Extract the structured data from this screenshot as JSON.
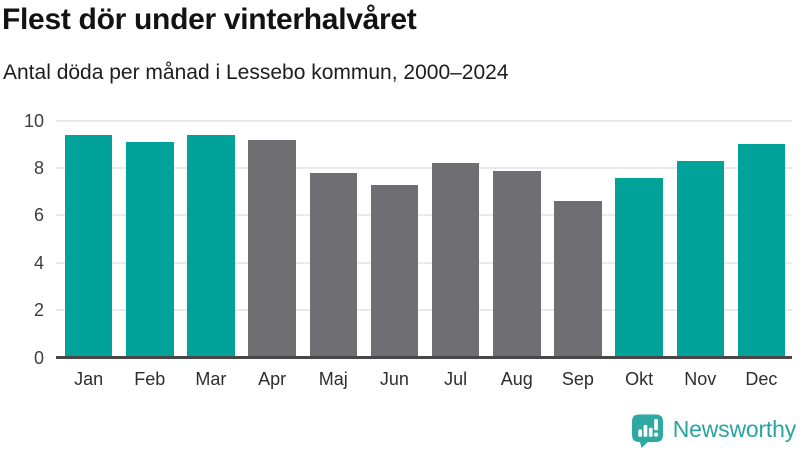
{
  "header": {
    "title": "Flest dör under vinterhalvåret",
    "subtitle": "Antal döda per månad i Lessebo kommun, 2000–2024"
  },
  "chart_data": {
    "type": "bar",
    "title": "Flest dör under vinterhalvåret",
    "subtitle": "Antal döda per månad i Lessebo kommun, 2000–2024",
    "categories": [
      "Jan",
      "Feb",
      "Mar",
      "Apr",
      "Maj",
      "Jun",
      "Jul",
      "Aug",
      "Sep",
      "Okt",
      "Nov",
      "Dec"
    ],
    "values": [
      9.4,
      9.1,
      9.4,
      9.2,
      7.8,
      7.3,
      8.2,
      7.9,
      6.6,
      7.6,
      8.3,
      9.0
    ],
    "highlighted": [
      true,
      true,
      true,
      false,
      false,
      false,
      false,
      false,
      false,
      true,
      true,
      true
    ],
    "xlabel": "",
    "ylabel": "",
    "ylim": [
      0,
      10
    ],
    "yticks": [
      0,
      2,
      4,
      6,
      8,
      10
    ],
    "grid": true,
    "legend": "none",
    "colors": {
      "highlight": "#00A29A",
      "base": "#6F6E73",
      "gridline": "#EAEAEA",
      "axis": "#474747"
    }
  },
  "footer": {
    "brand": "Newsworthy",
    "logo_icon": "newsworthy-barchart-bubble",
    "logo_color": "#2FA8A2",
    "text_color": "#2AA49E"
  }
}
